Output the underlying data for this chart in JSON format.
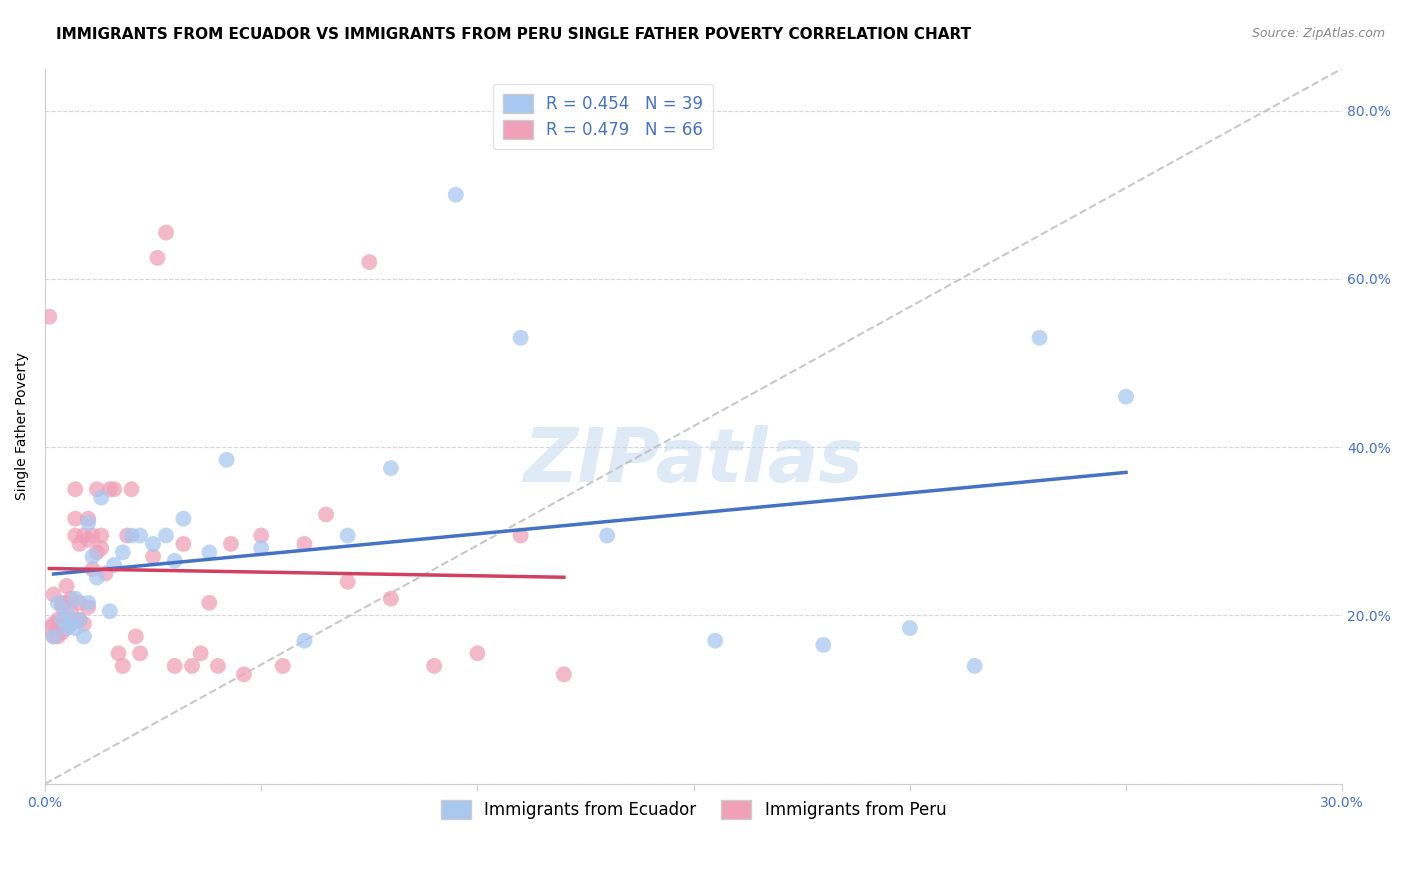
{
  "title": "IMMIGRANTS FROM ECUADOR VS IMMIGRANTS FROM PERU SINGLE FATHER POVERTY CORRELATION CHART",
  "source": "Source: ZipAtlas.com",
  "ylabel": "Single Father Poverty",
  "xlim": [
    0.0,
    0.3
  ],
  "ylim": [
    0.0,
    0.85
  ],
  "xticks": [
    0.0,
    0.05,
    0.1,
    0.15,
    0.2,
    0.25,
    0.3
  ],
  "yticks": [
    0.0,
    0.2,
    0.4,
    0.6,
    0.8
  ],
  "legend_label_ecuador": "R = 0.454   N = 39",
  "legend_label_peru": "R = 0.479   N = 66",
  "legend_bottom_ecuador": "Immigrants from Ecuador",
  "legend_bottom_peru": "Immigrants from Peru",
  "color_ecuador": "#A8C8F0",
  "color_peru": "#F0A0B8",
  "color_line_ecuador": "#4472C4",
  "color_line_peru": "#D04060",
  "color_diagonal": "#BBBBBB",
  "ecuador_x": [
    0.002,
    0.003,
    0.004,
    0.005,
    0.005,
    0.006,
    0.007,
    0.007,
    0.008,
    0.009,
    0.01,
    0.01,
    0.011,
    0.012,
    0.013,
    0.015,
    0.016,
    0.018,
    0.02,
    0.022,
    0.025,
    0.028,
    0.03,
    0.032,
    0.038,
    0.042,
    0.05,
    0.06,
    0.07,
    0.08,
    0.095,
    0.11,
    0.13,
    0.155,
    0.18,
    0.2,
    0.215,
    0.23,
    0.25
  ],
  "ecuador_y": [
    0.175,
    0.215,
    0.195,
    0.185,
    0.205,
    0.19,
    0.22,
    0.185,
    0.195,
    0.175,
    0.31,
    0.215,
    0.27,
    0.245,
    0.34,
    0.205,
    0.26,
    0.275,
    0.295,
    0.295,
    0.285,
    0.295,
    0.265,
    0.315,
    0.275,
    0.385,
    0.28,
    0.17,
    0.295,
    0.375,
    0.7,
    0.53,
    0.295,
    0.17,
    0.165,
    0.185,
    0.14,
    0.53,
    0.46
  ],
  "peru_x": [
    0.001,
    0.001,
    0.002,
    0.002,
    0.002,
    0.003,
    0.003,
    0.003,
    0.004,
    0.004,
    0.004,
    0.005,
    0.005,
    0.005,
    0.005,
    0.006,
    0.006,
    0.006,
    0.007,
    0.007,
    0.007,
    0.008,
    0.008,
    0.008,
    0.009,
    0.009,
    0.01,
    0.01,
    0.01,
    0.011,
    0.011,
    0.012,
    0.012,
    0.013,
    0.013,
    0.014,
    0.015,
    0.016,
    0.017,
    0.018,
    0.019,
    0.02,
    0.021,
    0.022,
    0.025,
    0.026,
    0.028,
    0.03,
    0.032,
    0.034,
    0.036,
    0.038,
    0.04,
    0.043,
    0.046,
    0.05,
    0.055,
    0.06,
    0.065,
    0.07,
    0.075,
    0.08,
    0.09,
    0.1,
    0.11,
    0.12
  ],
  "peru_y": [
    0.555,
    0.185,
    0.175,
    0.19,
    0.225,
    0.175,
    0.195,
    0.185,
    0.18,
    0.21,
    0.215,
    0.185,
    0.195,
    0.215,
    0.235,
    0.195,
    0.205,
    0.22,
    0.295,
    0.315,
    0.35,
    0.195,
    0.215,
    0.285,
    0.19,
    0.295,
    0.29,
    0.315,
    0.21,
    0.255,
    0.295,
    0.275,
    0.35,
    0.295,
    0.28,
    0.25,
    0.35,
    0.35,
    0.155,
    0.14,
    0.295,
    0.35,
    0.175,
    0.155,
    0.27,
    0.625,
    0.655,
    0.14,
    0.285,
    0.14,
    0.155,
    0.215,
    0.14,
    0.285,
    0.13,
    0.295,
    0.14,
    0.285,
    0.32,
    0.24,
    0.62,
    0.22,
    0.14,
    0.155,
    0.295,
    0.13
  ],
  "background_color": "#FFFFFF",
  "watermark_text": "ZIPatlas",
  "title_fontsize": 11,
  "axis_label_fontsize": 10,
  "tick_fontsize": 10
}
